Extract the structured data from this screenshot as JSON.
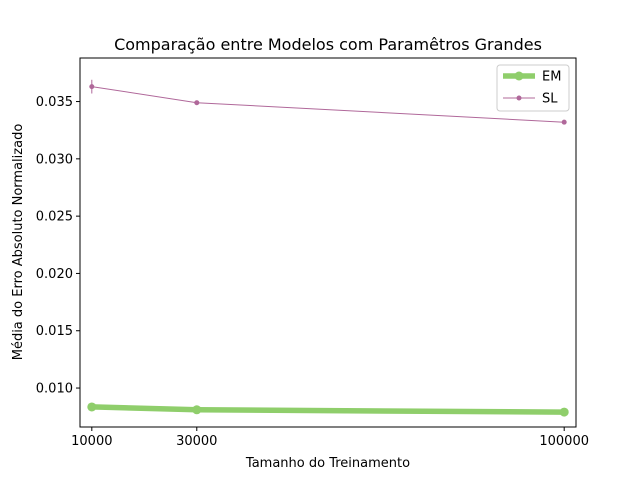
{
  "chart_data": {
    "type": "line",
    "title": "Comparação entre Modelos com Paramêtros Grandes",
    "xlabel": "Tamanho do Treinamento",
    "ylabel": "Média do Erro Absoluto Normalizado",
    "x": [
      10000,
      30000,
      100000
    ],
    "x_ticks": [
      "10000",
      "30000",
      "100000"
    ],
    "y_ticks": [
      "0.010",
      "0.015",
      "0.020",
      "0.025",
      "0.030",
      "0.035"
    ],
    "ylim": [
      0.0066,
      0.0388
    ],
    "grid": false,
    "legend_position": "top-right",
    "series": [
      {
        "name": "EM",
        "color": "#8fce6b",
        "values": [
          0.00835,
          0.0081,
          0.0079
        ],
        "errors": [
          0.0001,
          0.0001,
          0.0001
        ]
      },
      {
        "name": "SL",
        "color": "#b0689a",
        "values": [
          0.0363,
          0.0349,
          0.0332
        ],
        "errors": [
          0.0006,
          0.0002,
          5e-05
        ]
      }
    ]
  }
}
